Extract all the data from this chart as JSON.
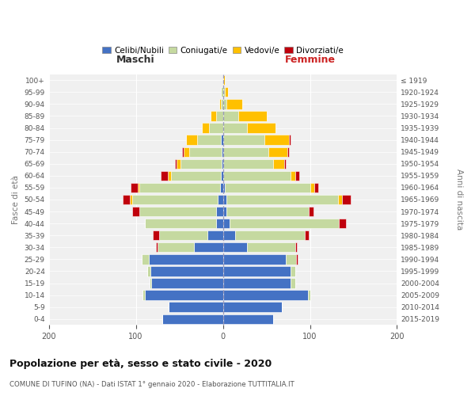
{
  "age_groups": [
    "0-4",
    "5-9",
    "10-14",
    "15-19",
    "20-24",
    "25-29",
    "30-34",
    "35-39",
    "40-44",
    "45-49",
    "50-54",
    "55-59",
    "60-64",
    "65-69",
    "70-74",
    "75-79",
    "80-84",
    "85-89",
    "90-94",
    "95-99",
    "100+"
  ],
  "birth_years": [
    "2015-2019",
    "2010-2014",
    "2005-2009",
    "2000-2004",
    "1995-1999",
    "1990-1994",
    "1985-1989",
    "1980-1984",
    "1975-1979",
    "1970-1974",
    "1965-1969",
    "1960-1964",
    "1955-1959",
    "1950-1954",
    "1945-1949",
    "1940-1944",
    "1935-1939",
    "1930-1934",
    "1925-1929",
    "1920-1924",
    "≤ 1919"
  ],
  "male_celibi": [
    70,
    62,
    90,
    82,
    83,
    85,
    33,
    18,
    8,
    8,
    6,
    3,
    2,
    1,
    1,
    2,
    0,
    0,
    0,
    0,
    0
  ],
  "male_coniugati": [
    0,
    0,
    2,
    2,
    4,
    8,
    42,
    55,
    82,
    88,
    98,
    93,
    58,
    48,
    38,
    28,
    16,
    8,
    2,
    2,
    0
  ],
  "male_vedovi": [
    0,
    0,
    0,
    0,
    0,
    0,
    0,
    0,
    0,
    0,
    3,
    2,
    3,
    4,
    6,
    12,
    8,
    6,
    2,
    0,
    0
  ],
  "male_divorziati": [
    0,
    0,
    0,
    0,
    0,
    0,
    2,
    8,
    0,
    8,
    8,
    8,
    8,
    2,
    2,
    0,
    0,
    0,
    0,
    0,
    0
  ],
  "female_celibi": [
    58,
    68,
    98,
    78,
    78,
    72,
    28,
    14,
    8,
    4,
    4,
    2,
    0,
    0,
    0,
    0,
    0,
    0,
    0,
    0,
    0
  ],
  "female_coniugati": [
    0,
    0,
    2,
    5,
    5,
    12,
    55,
    80,
    125,
    95,
    128,
    98,
    78,
    58,
    52,
    48,
    28,
    18,
    4,
    2,
    0
  ],
  "female_vedovi": [
    0,
    0,
    0,
    0,
    0,
    0,
    0,
    0,
    0,
    0,
    5,
    5,
    5,
    12,
    22,
    28,
    32,
    32,
    18,
    4,
    2
  ],
  "female_divorziati": [
    0,
    0,
    0,
    0,
    0,
    2,
    2,
    5,
    8,
    5,
    10,
    5,
    5,
    2,
    2,
    2,
    0,
    0,
    0,
    0,
    0
  ],
  "color_celibi": "#4472c4",
  "color_coniugati": "#c5d9a0",
  "color_vedovi": "#ffc000",
  "color_divorziati": "#c0000c",
  "title": "Popolazione per età, sesso e stato civile - 2020",
  "subtitle": "COMUNE DI TUFINO (NA) - Dati ISTAT 1° gennaio 2020 - Elaborazione TUTTITALIA.IT",
  "xlabel_left": "Maschi",
  "xlabel_right": "Femmine",
  "ylabel_left": "Fasce di età",
  "ylabel_right": "Anni di nascita",
  "xlim": 200,
  "background_color": "#ffffff",
  "grid_color": "#cccccc"
}
